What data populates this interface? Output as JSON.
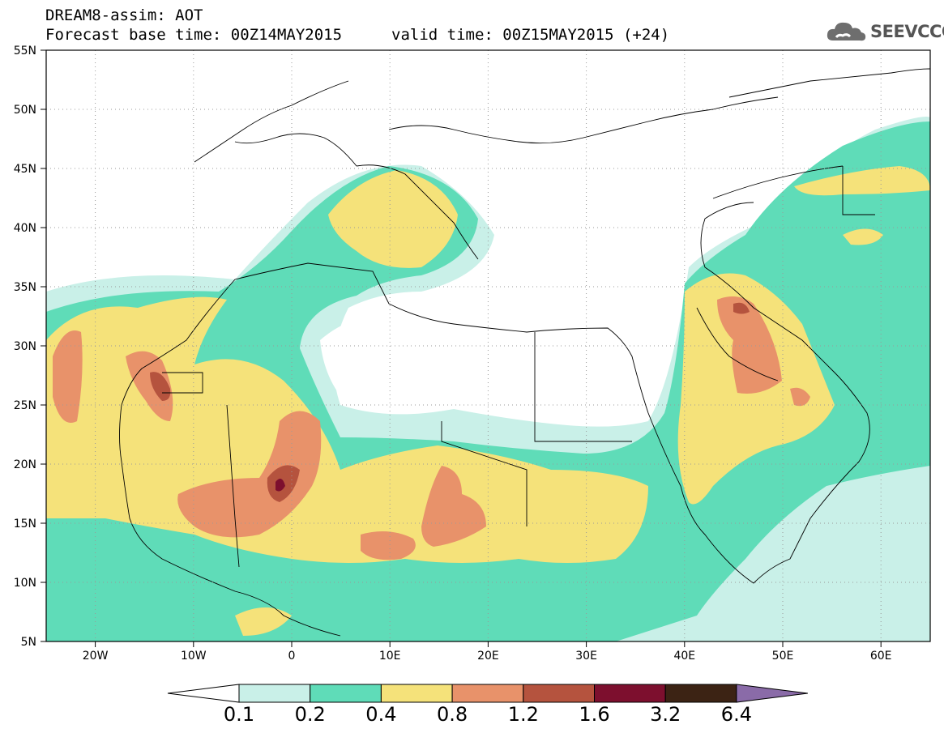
{
  "header": {
    "model_line": "DREAM8-assim: AOT",
    "base_time_line": "Forecast base time: 00Z14MAY2015",
    "valid_time_line": "valid time: 00Z15MAY2015 (+24)",
    "logo_text": "SEEVCCC"
  },
  "map": {
    "lat_ticks": [
      "55N",
      "50N",
      "45N",
      "40N",
      "35N",
      "30N",
      "25N",
      "20N",
      "15N",
      "10N",
      "5N"
    ],
    "lon_ticks": [
      "20W",
      "10W",
      "0",
      "10E",
      "20E",
      "30E",
      "40E",
      "50E",
      "60E"
    ],
    "lat_range": [
      5,
      55
    ],
    "lon_range": [
      -25,
      65
    ],
    "variable": "AOT"
  },
  "colorbar": {
    "thresholds": [
      "0.1",
      "0.2",
      "0.4",
      "0.8",
      "1.2",
      "1.6",
      "3.2",
      "6.4"
    ],
    "colors": [
      "#c9f0e8",
      "#5fdcb8",
      "#f5e27a",
      "#e8926a",
      "#b5533e",
      "#7d0f2e",
      "#3c2314",
      "#8a6ba8"
    ],
    "under_color": "#ffffff"
  }
}
